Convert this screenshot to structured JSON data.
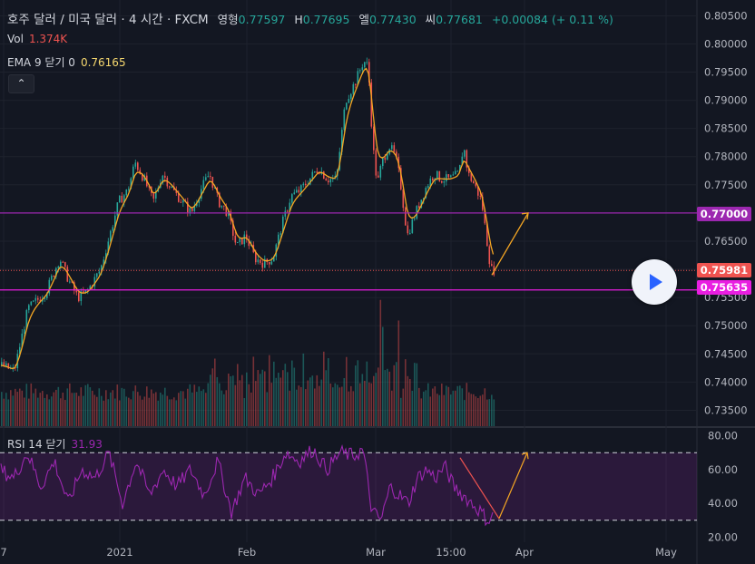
{
  "header": {
    "symbol_title": "호주 달러 / 미국 달러 · 4 시간 · FXCM",
    "o_label": "영형",
    "o_value": "0.77597",
    "h_label": "H",
    "h_value": "0.77695",
    "l_label": "엘",
    "l_value": "0.77430",
    "c_label": "씨",
    "c_value": "0.77681",
    "change": "+0.00084 (+ 0.11 %)"
  },
  "volume_legend": {
    "label": "Vol",
    "value": "1.374K"
  },
  "ema_legend": {
    "label": "EMA 9 닫기 0",
    "value": "0.76165"
  },
  "rsi_legend": {
    "label": "RSI 14 닫기",
    "value": "31.93"
  },
  "collapse_icon": "chevron-up-icon",
  "play_icon": "play-icon",
  "price_labels": [
    {
      "value": "0.77000",
      "color": "#9c27b0"
    },
    {
      "value": "0.75981",
      "color": "#ef5350"
    },
    {
      "value": "0.75635",
      "color": "#e91ee1"
    }
  ],
  "colors": {
    "up": "#26a69a",
    "down": "#ef5350",
    "ema": "#f5a623",
    "rsi": "#9c27b0",
    "level": "#9c27b0",
    "projection": "#f5a623"
  },
  "chart_data": [
    {
      "type": "candlestick",
      "title": "호주 달러 / 미국 달러 · 4 시간 · FXCM",
      "x_ticks": [
        "7",
        "2021",
        "Feb",
        "Mar",
        "15:00",
        "Apr",
        "May"
      ],
      "y_ticks": [
        "0.80500",
        "0.80000",
        "0.79500",
        "0.79000",
        "0.78500",
        "0.78000",
        "0.77500",
        "0.77000",
        "0.76500",
        "0.76000",
        "0.75500",
        "0.75000",
        "0.74500",
        "0.74000",
        "0.73500"
      ],
      "ylim": [
        0.7325,
        0.8065
      ],
      "series_path": [
        [
          0,
          0.743
        ],
        [
          15,
          0.742
        ],
        [
          30,
          0.753
        ],
        [
          50,
          0.756
        ],
        [
          65,
          0.762
        ],
        [
          75,
          0.758
        ],
        [
          85,
          0.755
        ],
        [
          95,
          0.756
        ],
        [
          110,
          0.76
        ],
        [
          120,
          0.766
        ],
        [
          130,
          0.772
        ],
        [
          140,
          0.774
        ],
        [
          148,
          0.779
        ],
        [
          158,
          0.776
        ],
        [
          168,
          0.772
        ],
        [
          178,
          0.777
        ],
        [
          190,
          0.774
        ],
        [
          200,
          0.772
        ],
        [
          210,
          0.77
        ],
        [
          220,
          0.774
        ],
        [
          230,
          0.777
        ],
        [
          240,
          0.772
        ],
        [
          250,
          0.77
        ],
        [
          260,
          0.764
        ],
        [
          270,
          0.766
        ],
        [
          280,
          0.762
        ],
        [
          290,
          0.761
        ],
        [
          300,
          0.762
        ],
        [
          310,
          0.768
        ],
        [
          320,
          0.773
        ],
        [
          330,
          0.774
        ],
        [
          340,
          0.776
        ],
        [
          350,
          0.778
        ],
        [
          360,
          0.776
        ],
        [
          370,
          0.776
        ],
        [
          380,
          0.79
        ],
        [
          390,
          0.793
        ],
        [
          400,
          0.797
        ],
        [
          405,
          0.796
        ],
        [
          410,
          0.782
        ],
        [
          415,
          0.775
        ],
        [
          420,
          0.779
        ],
        [
          428,
          0.782
        ],
        [
          435,
          0.78
        ],
        [
          440,
          0.776
        ],
        [
          448,
          0.766
        ],
        [
          455,
          0.769
        ],
        [
          462,
          0.772
        ],
        [
          470,
          0.775
        ],
        [
          478,
          0.777
        ],
        [
          485,
          0.776
        ],
        [
          495,
          0.776
        ],
        [
          505,
          0.777
        ],
        [
          510,
          0.782
        ],
        [
          515,
          0.777
        ],
        [
          522,
          0.775
        ],
        [
          530,
          0.772
        ],
        [
          535,
          0.766
        ],
        [
          540,
          0.76
        ],
        [
          545,
          0.7598
        ]
      ],
      "projection": [
        [
          542,
          0.759
        ],
        [
          582,
          0.77
        ]
      ],
      "horizontal_levels": [
        0.77,
        0.75635
      ],
      "last_price": 0.75981
    },
    {
      "type": "line",
      "title": "RSI 14 닫기",
      "y_ticks": [
        "80.00",
        "60.00",
        "40.00",
        "20.00"
      ],
      "ylim": [
        17,
        83
      ],
      "bands": [
        70,
        30
      ],
      "series_path": [
        [
          0,
          60
        ],
        [
          15,
          55
        ],
        [
          30,
          70
        ],
        [
          45,
          50
        ],
        [
          60,
          65
        ],
        [
          75,
          40
        ],
        [
          90,
          60
        ],
        [
          105,
          55
        ],
        [
          120,
          70
        ],
        [
          135,
          40
        ],
        [
          150,
          65
        ],
        [
          165,
          45
        ],
        [
          180,
          60
        ],
        [
          195,
          50
        ],
        [
          210,
          60
        ],
        [
          225,
          45
        ],
        [
          240,
          65
        ],
        [
          255,
          35
        ],
        [
          270,
          55
        ],
        [
          285,
          45
        ],
        [
          300,
          55
        ],
        [
          315,
          70
        ],
        [
          330,
          65
        ],
        [
          345,
          72
        ],
        [
          360,
          60
        ],
        [
          375,
          70
        ],
        [
          390,
          68
        ],
        [
          400,
          72
        ],
        [
          410,
          35
        ],
        [
          420,
          30
        ],
        [
          430,
          50
        ],
        [
          440,
          45
        ],
        [
          450,
          40
        ],
        [
          460,
          55
        ],
        [
          470,
          60
        ],
        [
          480,
          55
        ],
        [
          490,
          62
        ],
        [
          500,
          50
        ],
        [
          510,
          45
        ],
        [
          520,
          40
        ],
        [
          530,
          35
        ],
        [
          537,
          30
        ],
        [
          545,
          33
        ]
      ],
      "projection_lines": [
        {
          "from": [
            507,
            67
          ],
          "to": [
            550,
            31
          ],
          "color": "#ef5350"
        },
        {
          "from": [
            550,
            31
          ],
          "to": [
            581,
            70
          ],
          "color": "#f5a623"
        }
      ]
    }
  ]
}
